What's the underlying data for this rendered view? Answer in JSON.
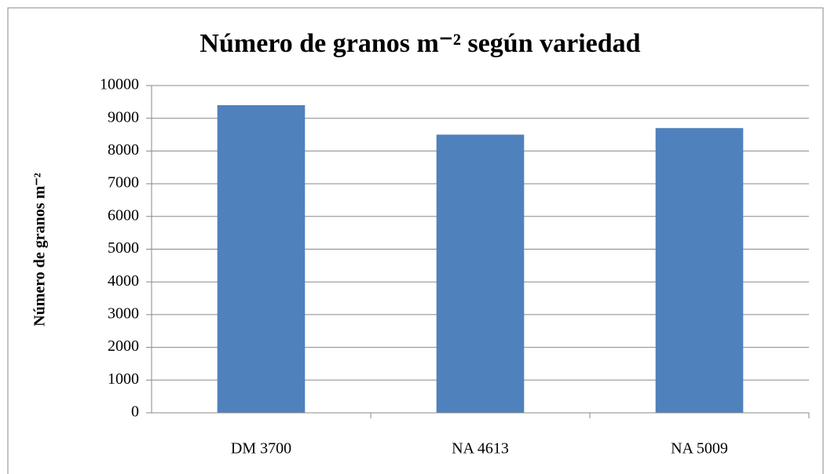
{
  "chart_data": {
    "type": "bar",
    "title": "Número de granos m⁻² según variedad",
    "y_label": "Número de granos m⁻²",
    "categories": [
      "DM 3700",
      "NA 4613",
      "NA 5009"
    ],
    "values": [
      9400,
      8500,
      8700
    ],
    "color": "#4f81bd",
    "ylim": [
      0,
      10000
    ],
    "yticks": [
      0,
      1000,
      2000,
      3000,
      4000,
      5000,
      6000,
      7000,
      8000,
      9000,
      10000
    ],
    "grid": true
  }
}
